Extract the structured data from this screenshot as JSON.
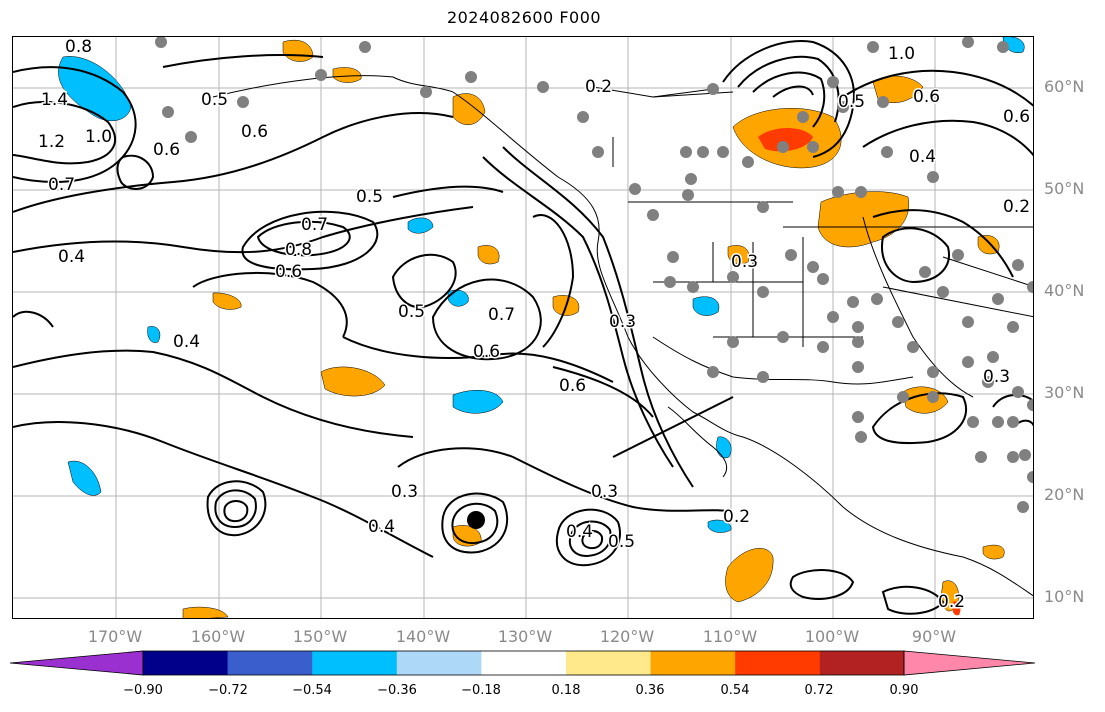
{
  "title": "2024082600 F000",
  "axes": {
    "lon_labels": [
      "170°W",
      "160°W",
      "150°W",
      "140°W",
      "130°W",
      "120°W",
      "110°W",
      "100°W",
      "90°W"
    ],
    "lat_labels": [
      "60°N",
      "50°N",
      "40°N",
      "30°N",
      "20°N",
      "10°N"
    ]
  },
  "contour_labels": [
    "0.8",
    "1.4",
    "1.2",
    "1.0",
    "0.6",
    "0.7",
    "0.4",
    "0.5",
    "0.6",
    "0.5",
    "0.7",
    "0.8",
    "0.6",
    "0.4",
    "0.5",
    "0.7",
    "0.6",
    "0.6",
    "0.3",
    "0.4",
    "0.3",
    "0.4",
    "0.5",
    "0.2",
    "0.3",
    "0.2",
    "0.3",
    "0.5",
    "0.6",
    "0.4",
    "1.0",
    "0.6",
    "0.3",
    "0.2",
    "0.2"
  ],
  "colorbar": {
    "ticks": [
      "−0.90",
      "−0.72",
      "−0.54",
      "−0.36",
      "−0.18",
      "0.18",
      "0.36",
      "0.54",
      "0.72",
      "0.90"
    ],
    "colors": [
      "#9b30d0",
      "#00008b",
      "#3a5fcd",
      "#00bfff",
      "#add8f7",
      "#ffffff",
      "#ffe98a",
      "#ffa500",
      "#ff3b00",
      "#b22222",
      "#ff88aa"
    ]
  },
  "colors": {
    "positive_anomaly": "#ffa500",
    "strong_positive": "#ff3b00",
    "negative_anomaly": "#00bfff",
    "station_dot": "#808080",
    "contour": "#000000"
  }
}
